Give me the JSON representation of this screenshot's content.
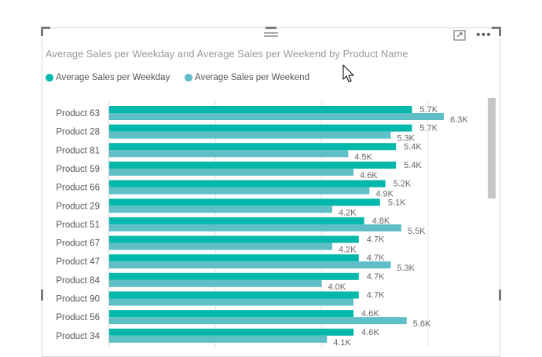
{
  "visual": {
    "title": "Average Sales per Weekday and Average Sales per Weekend by Product Name",
    "legend": [
      {
        "label": "Average Sales per Weekday",
        "color": "#01B8AA"
      },
      {
        "label": "Average Sales per Weekend",
        "color": "#5FBFC7"
      }
    ],
    "icons": {
      "focus": "focus-mode-icon",
      "more": "more-options-icon",
      "drag": "drag-handle-icon",
      "cursor": "mouse-pointer-icon"
    }
  },
  "chart_data": {
    "type": "bar",
    "orientation": "horizontal",
    "title": "Average Sales per Weekday and Average Sales per Weekend by Product Name",
    "categories": [
      "Product 63",
      "Product 28",
      "Product 81",
      "Product 59",
      "Product 66",
      "Product 29",
      "Product 51",
      "Product 67",
      "Product 47",
      "Product 84",
      "Product 90",
      "Product 56",
      "Product 34"
    ],
    "series": [
      {
        "name": "Average Sales per Weekday",
        "color": "#01B8AA",
        "values": [
          5700,
          5700,
          5400,
          5400,
          5200,
          5100,
          4800,
          4700,
          4700,
          4700,
          4700,
          4600,
          4600
        ],
        "labels": [
          "5.7K",
          "5.7K",
          "5.4K",
          "5.4K",
          "5.2K",
          "5.1K",
          "4.8K",
          "4.7K",
          "4.7K",
          "4.7K",
          "4.7K",
          "4.6K",
          "4.6K"
        ]
      },
      {
        "name": "Average Sales per Weekend",
        "color": "#5FBFC7",
        "values": [
          6300,
          5300,
          4500,
          4600,
          4900,
          4200,
          5500,
          4200,
          5300,
          4000,
          4600,
          5600,
          4100
        ],
        "labels": [
          "6.3K",
          "5.3K",
          "4.5K",
          "4.6K",
          "4.9K",
          "4.2K",
          "5.5K",
          "4.2K",
          "5.3K",
          "4.0K",
          "",
          "5.6K",
          "4.1K"
        ]
      }
    ],
    "xlim": [
      0,
      6400
    ],
    "grid": true,
    "legend_position": "top-left"
  }
}
